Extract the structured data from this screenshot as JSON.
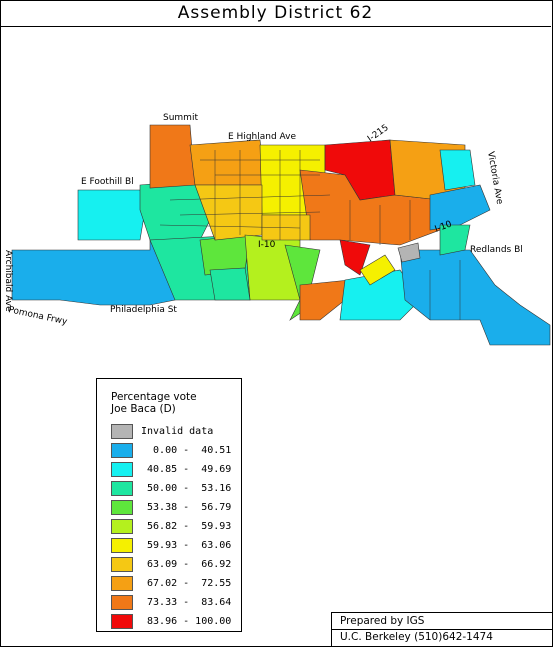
{
  "title": "Assembly District 62",
  "map": {
    "roads": {
      "summit": "Summit",
      "highland": "E Highland Ave",
      "i215": "I-215",
      "victoria": "Victoria Ave",
      "foothill": "E Foothill Bl",
      "redlands": "Redlands Bl",
      "archibald": "Archibald Ave",
      "philadelphia": "Philadelphia St",
      "pomona": "Pomona Frwy",
      "i10": "I-10",
      "i10b": "I-10"
    }
  },
  "legend": {
    "title_line1": "Percentage vote",
    "title_line2": "Joe Baca (D)",
    "items": [
      {
        "label": "Invalid data",
        "color": "#b4b4b4"
      },
      {
        "label": "  0.00 -  40.51",
        "color": "#1aaeeb"
      },
      {
        "label": " 40.85 -  49.69",
        "color": "#16f0f0"
      },
      {
        "label": " 50.00 -  53.16",
        "color": "#1ee6a0"
      },
      {
        "label": " 53.38 -  56.79",
        "color": "#5ee63c"
      },
      {
        "label": " 56.82 -  59.93",
        "color": "#b4f01e"
      },
      {
        "label": " 59.93 -  63.06",
        "color": "#f5f000"
      },
      {
        "label": " 63.09 -  66.92",
        "color": "#f5c814"
      },
      {
        "label": " 67.02 -  72.55",
        "color": "#f5a014"
      },
      {
        "label": " 73.33 -  83.64",
        "color": "#f07818"
      },
      {
        "label": " 83.96 - 100.00",
        "color": "#f00a0a"
      }
    ]
  },
  "credit": {
    "line1": "Prepared by IGS",
    "line2": "U.C. Berkeley (510)642-1474"
  }
}
